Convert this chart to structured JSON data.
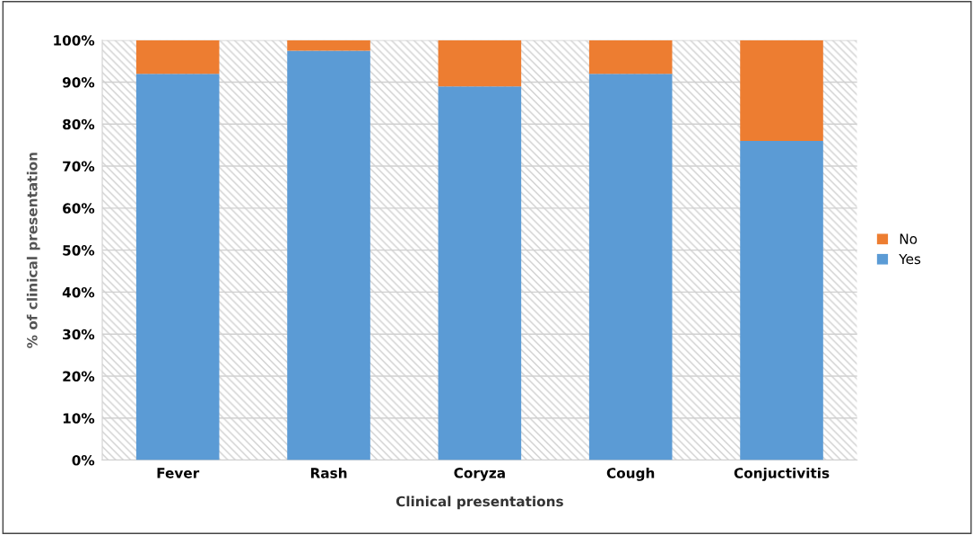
{
  "chart_data": {
    "type": "bar",
    "stacked": true,
    "xlabel": "Clinical presentations",
    "ylabel": "% of clinical presentation",
    "categories": [
      "Fever",
      "Rash",
      "Coryza",
      "Cough",
      "Conjuctivitis"
    ],
    "series": [
      {
        "name": "Yes",
        "color": "#5b9bd5",
        "values": [
          92,
          97.5,
          89,
          92,
          76
        ]
      },
      {
        "name": "No",
        "color": "#ed7d31",
        "values": [
          8,
          2.5,
          11,
          8,
          24
        ]
      }
    ],
    "ylim": [
      0,
      100
    ],
    "yticks": [
      {
        "value": 0,
        "label": "0%"
      },
      {
        "value": 10,
        "label": "10%"
      },
      {
        "value": 20,
        "label": "20%"
      },
      {
        "value": 30,
        "label": "30%"
      },
      {
        "value": 40,
        "label": "40%"
      },
      {
        "value": 50,
        "label": "50%"
      },
      {
        "value": 60,
        "label": "60%"
      },
      {
        "value": 70,
        "label": "70%"
      },
      {
        "value": 80,
        "label": "80%"
      },
      {
        "value": 90,
        "label": "90%"
      },
      {
        "value": 100,
        "label": "100%"
      }
    ],
    "grid": "y",
    "legend": "right"
  }
}
